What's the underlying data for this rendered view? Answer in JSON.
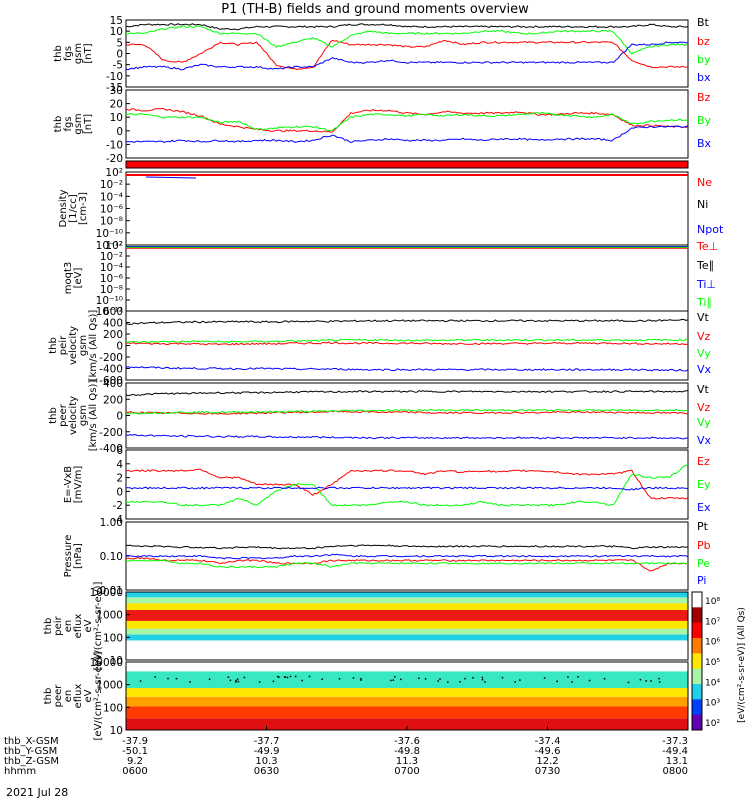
{
  "title": "P1 (TH-B) fields and ground moments overview",
  "date": "2021 Jul 28",
  "colors": {
    "black": "#000000",
    "red": "#ff0000",
    "green": "#00ff00",
    "blue": "#0000ff"
  },
  "colorbar": {
    "ticks": [
      "10⁸",
      "10⁷",
      "10⁶",
      "10⁵",
      "10⁴",
      "10³",
      "10²"
    ],
    "label": "[eV/(cm²-s-sr-eV)] (All Qs)"
  },
  "chart_data": [
    {
      "type": "line",
      "ylabel": [
        "thb",
        "fgs",
        "gsm",
        "[nT]"
      ],
      "ylim": [
        -15,
        15
      ],
      "yticks": [
        "15",
        "10",
        "5",
        "0",
        "-5",
        "-10",
        "-15"
      ],
      "series": [
        {
          "name": "Bt",
          "color": "#000000",
          "values": [
            12,
            13,
            13,
            13,
            13,
            11,
            11,
            12,
            12,
            12,
            12,
            12,
            13,
            13,
            13,
            12,
            12,
            12,
            12,
            12,
            12,
            12,
            12,
            12,
            12,
            12,
            12,
            12,
            13,
            12,
            12
          ]
        },
        {
          "name": "bz",
          "color": "#ff0000",
          "values": [
            4,
            4,
            -3,
            -4,
            0,
            5,
            4,
            5,
            -5,
            -7,
            -6,
            6,
            4,
            4,
            4,
            3,
            3,
            6,
            4,
            5,
            5,
            5,
            5,
            5,
            5,
            5,
            5,
            -3,
            -6,
            -6,
            -6
          ]
        },
        {
          "name": "by",
          "color": "#00ff00",
          "values": [
            9,
            9,
            11,
            12,
            12,
            9,
            9,
            9,
            3,
            5,
            7,
            3,
            8,
            10,
            9,
            9,
            9,
            9,
            9,
            10,
            10,
            9,
            9,
            10,
            10,
            10,
            10,
            0,
            3,
            4,
            4
          ]
        },
        {
          "name": "bx",
          "color": "#0000ff",
          "values": [
            -7,
            -6,
            -6,
            -7,
            -5,
            -6,
            -6,
            -6,
            -7,
            -6,
            -6,
            -2,
            -4,
            -4,
            -3,
            -4,
            -4,
            -4,
            -4,
            -4,
            -4,
            -4,
            -4,
            -4,
            -4,
            -4,
            -4,
            4,
            4,
            5,
            5
          ]
        }
      ]
    },
    {
      "type": "line",
      "ylabel": [
        "thb",
        "fgs",
        "gsm",
        "[nT]"
      ],
      "ylim": [
        -20,
        30
      ],
      "yticks": [
        "30",
        "20",
        "10",
        "0",
        "-10",
        "-20"
      ],
      "series": [
        {
          "name": "Bz",
          "color": "#ff0000",
          "values": [
            16,
            15,
            16,
            14,
            11,
            5,
            3,
            1,
            0,
            0,
            0,
            -1,
            13,
            15,
            15,
            13,
            12,
            14,
            13,
            13,
            13,
            14,
            12,
            12,
            13,
            13,
            12,
            4,
            4,
            3,
            3
          ]
        },
        {
          "name": "By",
          "color": "#00ff00",
          "values": [
            12,
            12,
            10,
            10,
            10,
            6,
            7,
            1,
            2,
            3,
            3,
            0,
            10,
            12,
            12,
            11,
            12,
            11,
            12,
            11,
            11,
            12,
            13,
            12,
            11,
            10,
            12,
            5,
            7,
            8,
            8
          ]
        },
        {
          "name": "Bx",
          "color": "#0000ff",
          "values": [
            -8,
            -8,
            -8,
            -7,
            -8,
            -7,
            -8,
            -7,
            -7,
            -8,
            -7,
            -3,
            -8,
            -7,
            -6,
            -7,
            -7,
            -7,
            -6,
            -7,
            -6,
            -6,
            -7,
            -6,
            -6,
            -6,
            -7,
            2,
            3,
            3,
            3
          ]
        }
      ]
    },
    {
      "type": "line",
      "ylabel": [
        "Density",
        "[1/cc]",
        "[cm-3]"
      ],
      "ylim": [
        -12,
        3
      ],
      "yticks": [
        "10²",
        "10⁻²",
        "10⁻⁴",
        "10⁻⁶",
        "10⁻⁸",
        "10⁻¹⁰",
        "10⁻¹²"
      ],
      "series": [
        {
          "name": "Ne",
          "color": "#ff0000"
        },
        {
          "name": "Ni",
          "color": "#000000"
        },
        {
          "name": "Npot",
          "color": "#0000ff"
        }
      ]
    },
    {
      "type": "line",
      "ylabel": [
        "moqt3",
        "[eV]"
      ],
      "ylim": [
        -12,
        3
      ],
      "yticks": [
        "10²",
        "10⁻²",
        "10⁻⁴",
        "10⁻⁶",
        "10⁻⁸",
        "10⁻¹⁰",
        "10⁻¹²"
      ],
      "series": [
        {
          "name": "Te⊥",
          "color": "#ff0000"
        },
        {
          "name": "Te∥",
          "color": "#000000"
        },
        {
          "name": "Ti⊥",
          "color": "#0000ff"
        },
        {
          "name": "Ti∥",
          "color": "#00ff00"
        }
      ]
    },
    {
      "type": "line",
      "ylabel": [
        "thb",
        "peir",
        "velocity",
        "gsm",
        "[km/s (All Qs)]"
      ],
      "ylim": [
        -600,
        600
      ],
      "yticks": [
        "600",
        "400",
        "200",
        "0",
        "-200",
        "-400",
        "-600"
      ],
      "series": [
        {
          "name": "Vt",
          "color": "#000000",
          "values": [
            380,
            390,
            400,
            405,
            410,
            410,
            415,
            410,
            410,
            420,
            420,
            420,
            425,
            430,
            430,
            430,
            430,
            430,
            430,
            430,
            430,
            430,
            430,
            430,
            430,
            430,
            430,
            430,
            430,
            440,
            440
          ]
        },
        {
          "name": "Vz",
          "color": "#ff0000",
          "values": [
            40,
            35,
            30,
            35,
            25,
            20,
            25,
            30,
            30,
            40,
            40,
            50,
            40,
            40,
            40,
            40,
            35,
            30,
            35,
            30,
            35,
            35,
            35,
            40,
            40,
            40,
            40,
            35,
            30,
            30,
            30
          ]
        },
        {
          "name": "Vy",
          "color": "#00ff00",
          "values": [
            60,
            60,
            65,
            70,
            70,
            65,
            65,
            70,
            70,
            80,
            80,
            90,
            95,
            95,
            95,
            90,
            90,
            90,
            95,
            95,
            95,
            95,
            95,
            95,
            95,
            95,
            95,
            95,
            95,
            95,
            95
          ]
        },
        {
          "name": "Vx",
          "color": "#0000ff",
          "values": [
            -370,
            -380,
            -390,
            -395,
            -400,
            -400,
            -405,
            -400,
            -405,
            -410,
            -410,
            -410,
            -415,
            -420,
            -420,
            -420,
            -420,
            -420,
            -420,
            -420,
            -420,
            -420,
            -420,
            -420,
            -420,
            -420,
            -420,
            -420,
            -425,
            -430,
            -430
          ]
        }
      ]
    },
    {
      "type": "line",
      "ylabel": [
        "thb",
        "peer",
        "velocity",
        "gsm",
        "[km/s (All Qs)]"
      ],
      "ylim": [
        -400,
        400
      ],
      "yticks": [
        "400",
        "200",
        "0",
        "-200",
        "-400"
      ],
      "series": [
        {
          "name": "Vt",
          "color": "#000000",
          "values": [
            250,
            260,
            270,
            270,
            275,
            280,
            280,
            280,
            285,
            290,
            290,
            290,
            295,
            295,
            295,
            295,
            295,
            295,
            295,
            295,
            295,
            295,
            295,
            295,
            295,
            295,
            295,
            295,
            295,
            295,
            295
          ]
        },
        {
          "name": "Vz",
          "color": "#ff0000",
          "values": [
            40,
            35,
            30,
            30,
            25,
            20,
            25,
            30,
            35,
            40,
            40,
            50,
            45,
            45,
            40,
            40,
            35,
            30,
            35,
            30,
            35,
            35,
            35,
            40,
            40,
            40,
            40,
            35,
            35,
            30,
            30
          ]
        },
        {
          "name": "Vy",
          "color": "#00ff00",
          "values": [
            30,
            30,
            35,
            40,
            40,
            40,
            40,
            45,
            45,
            50,
            50,
            55,
            60,
            60,
            65,
            65,
            65,
            65,
            65,
            65,
            65,
            65,
            65,
            65,
            65,
            65,
            65,
            65,
            65,
            65,
            65
          ]
        },
        {
          "name": "Vx",
          "color": "#0000ff",
          "values": [
            -240,
            -245,
            -250,
            -255,
            -255,
            -260,
            -260,
            -260,
            -265,
            -265,
            -265,
            -270,
            -270,
            -275,
            -275,
            -275,
            -275,
            -275,
            -275,
            -275,
            -275,
            -275,
            -275,
            -275,
            -275,
            -275,
            -275,
            -275,
            -275,
            -280,
            -280
          ]
        }
      ]
    },
    {
      "type": "line",
      "ylabel": [
        "E=-VxB",
        "[mV/m]"
      ],
      "ylim": [
        -4,
        6
      ],
      "yticks": [
        "6",
        "4",
        "2",
        "0",
        "-2",
        "-4"
      ],
      "series": [
        {
          "name": "Ez",
          "color": "#ff0000",
          "values": [
            3,
            3,
            3,
            3,
            3.2,
            2,
            2,
            1,
            1,
            1,
            -0.5,
            1,
            3,
            3,
            3,
            3,
            2.5,
            3,
            2.8,
            3,
            2.8,
            3,
            3,
            2.8,
            2.5,
            2.5,
            2.5,
            3,
            -1,
            -1,
            -1
          ]
        },
        {
          "name": "Ey",
          "color": "#00ff00",
          "values": [
            -1.5,
            -1.5,
            -1.5,
            -2,
            -2,
            -2,
            -1,
            -2,
            0,
            1,
            1,
            -2,
            -2,
            -2,
            -1.5,
            -1.5,
            -2,
            -2,
            -2,
            -1.5,
            -2,
            -2,
            -2,
            -2,
            -1.5,
            -1.5,
            -2,
            2.5,
            2,
            2,
            4
          ]
        },
        {
          "name": "Ex",
          "color": "#0000ff",
          "values": [
            0.5,
            0.5,
            0.5,
            0.5,
            0.5,
            0.5,
            0.5,
            0.5,
            0.5,
            0.5,
            0.5,
            0.5,
            0.5,
            0.5,
            0.5,
            0.5,
            0.5,
            0.5,
            0.5,
            0.5,
            0.5,
            0.5,
            0.5,
            0.5,
            0.5,
            0.5,
            0.5,
            0.3,
            0.5,
            0.5,
            0.5
          ]
        }
      ]
    },
    {
      "type": "line",
      "ylabel": [
        "Pressure",
        "[nPa]"
      ],
      "ylim": [
        0.005,
        1
      ],
      "yticks": [
        "1.00",
        "0.10",
        "0.01"
      ],
      "series": [
        {
          "name": "Pt",
          "color": "#000000",
          "values": [
            0.16,
            0.15,
            0.15,
            0.14,
            0.14,
            0.13,
            0.14,
            0.14,
            0.13,
            0.13,
            0.13,
            0.15,
            0.16,
            0.16,
            0.16,
            0.15,
            0.15,
            0.15,
            0.15,
            0.15,
            0.15,
            0.15,
            0.15,
            0.15,
            0.15,
            0.15,
            0.15,
            0.13,
            0.14,
            0.14,
            0.14
          ]
        },
        {
          "name": "Pb",
          "color": "#ff0000",
          "values": [
            0.06,
            0.06,
            0.05,
            0.05,
            0.05,
            0.04,
            0.05,
            0.05,
            0.04,
            0.04,
            0.04,
            0.05,
            0.05,
            0.05,
            0.05,
            0.05,
            0.05,
            0.05,
            0.05,
            0.05,
            0.05,
            0.05,
            0.05,
            0.05,
            0.05,
            0.05,
            0.05,
            0.05,
            0.02,
            0.04,
            0.04
          ]
        },
        {
          "name": "Pe",
          "color": "#00ff00",
          "values": [
            0.05,
            0.05,
            0.05,
            0.04,
            0.04,
            0.03,
            0.03,
            0.03,
            0.03,
            0.04,
            0.04,
            0.03,
            0.04,
            0.04,
            0.04,
            0.04,
            0.04,
            0.04,
            0.04,
            0.04,
            0.04,
            0.04,
            0.04,
            0.04,
            0.04,
            0.04,
            0.04,
            0.04,
            0.04,
            0.04,
            0.04
          ]
        },
        {
          "name": "Pi",
          "color": "#0000ff",
          "values": [
            0.07,
            0.07,
            0.07,
            0.07,
            0.07,
            0.06,
            0.06,
            0.06,
            0.06,
            0.07,
            0.07,
            0.08,
            0.07,
            0.07,
            0.07,
            0.07,
            0.07,
            0.07,
            0.07,
            0.07,
            0.07,
            0.07,
            0.07,
            0.07,
            0.07,
            0.07,
            0.07,
            0.07,
            0.07,
            0.07,
            0.07
          ]
        }
      ]
    },
    {
      "type": "heatmap",
      "ylabel": [
        "thb",
        "peir",
        "en",
        "eflux",
        "eV",
        "[eV/(cm²-s-sr-eV)]"
      ],
      "ylim": [
        5,
        15000
      ],
      "yticks": [
        "10000",
        "1000",
        "100",
        "10"
      ],
      "bands": [
        {
          "from": 5,
          "to": 50,
          "color": "#ffffff"
        },
        {
          "from": 50,
          "to": 100,
          "color": "#1fd0e8"
        },
        {
          "from": 100,
          "to": 200,
          "color": "#a9f5a8"
        },
        {
          "from": 200,
          "to": 500,
          "color": "#ffe600"
        },
        {
          "from": 500,
          "to": 1800,
          "color": "#ee1a12"
        },
        {
          "from": 1800,
          "to": 4000,
          "color": "#ffe600"
        },
        {
          "from": 4000,
          "to": 8000,
          "color": "#a9f5a8"
        },
        {
          "from": 8000,
          "to": 15000,
          "color": "#1fd0e8"
        }
      ]
    },
    {
      "type": "heatmap",
      "ylabel": [
        "thb",
        "peer",
        "en",
        "eflux",
        "eV",
        "[eV/(cm²-s-sr-eV)]"
      ],
      "ylim": [
        5,
        15000
      ],
      "yticks": [
        "10000",
        "1000",
        "100",
        "10"
      ],
      "bands": [
        {
          "from": 5,
          "to": 20,
          "color": "#e01010"
        },
        {
          "from": 20,
          "to": 80,
          "color": "#ff3a00"
        },
        {
          "from": 80,
          "to": 250,
          "color": "#ffa000"
        },
        {
          "from": 250,
          "to": 700,
          "color": "#ffe600"
        },
        {
          "from": 700,
          "to": 5000,
          "color": "#38e8c0"
        },
        {
          "from": 5000,
          "to": 15000,
          "color": "#ffffff"
        }
      ]
    }
  ],
  "xaxis": {
    "rows": [
      "thb_X-GSM",
      "thb_Y-GSM",
      "thb_Z-GSM",
      "hhmm"
    ],
    "ticks": [
      {
        "time": "0600",
        "x": "-37.9",
        "y": "-50.1",
        "z": "9.2"
      },
      {
        "time": "0630",
        "x": "-37.7",
        "y": "-49.9",
        "z": "10.3"
      },
      {
        "time": "0700",
        "x": "-37.6",
        "y": "-49.8",
        "z": "11.3"
      },
      {
        "time": "0730",
        "x": "-37.4",
        "y": "-49.6",
        "z": "12.2"
      },
      {
        "time": "0800",
        "x": "-37.3",
        "y": "-49.4",
        "z": "13.1"
      }
    ]
  }
}
